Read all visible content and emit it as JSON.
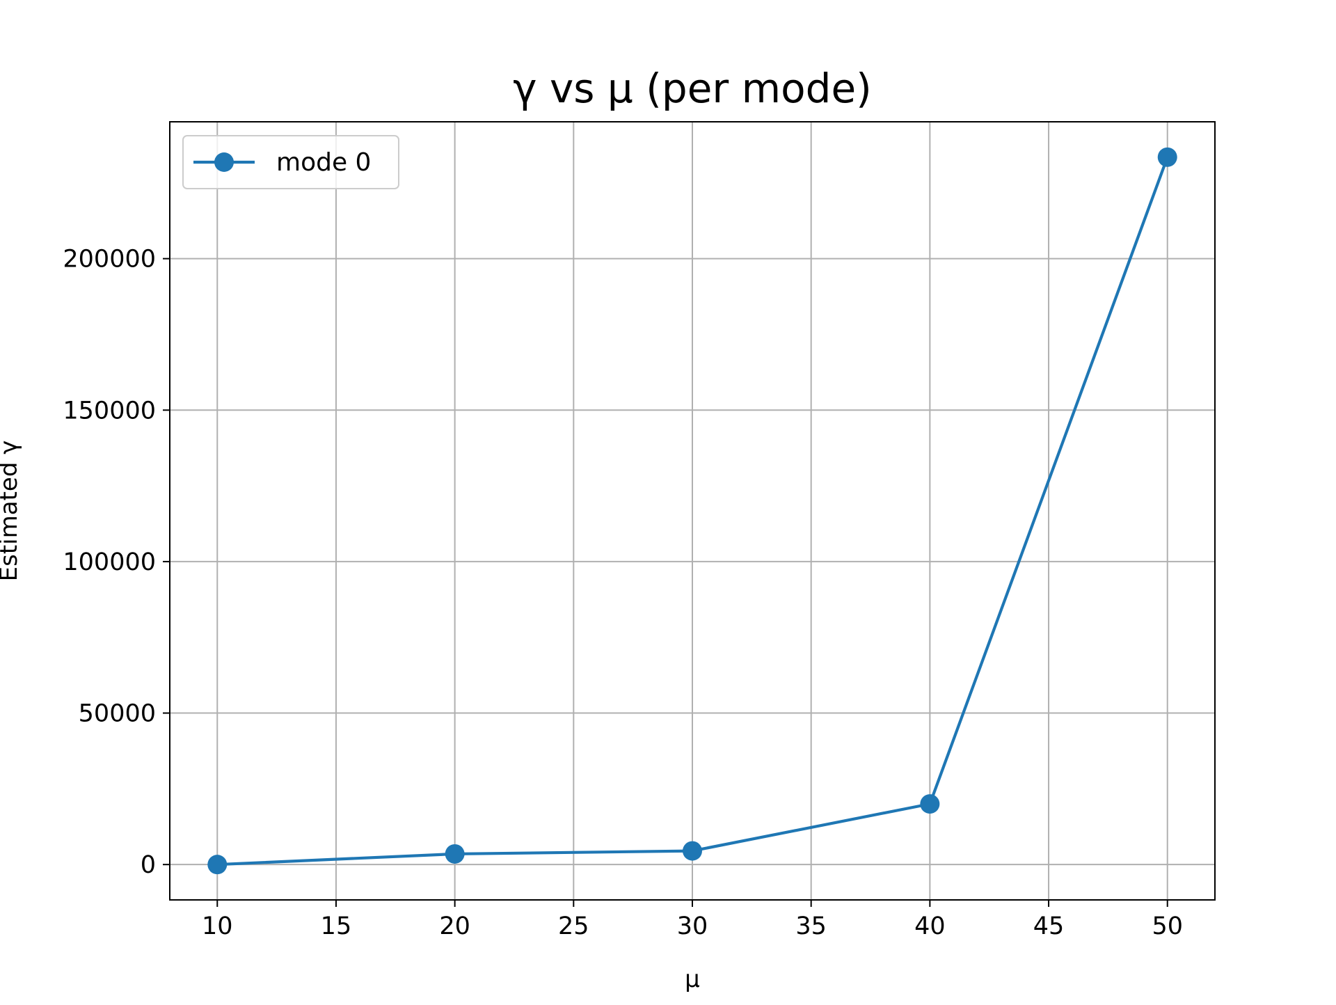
{
  "chart_data": {
    "type": "line",
    "title": "γ vs μ (per mode)",
    "xlabel": "μ",
    "ylabel": "Estimated γ",
    "x": [
      10,
      20,
      30,
      40,
      50
    ],
    "series": [
      {
        "name": "mode 0",
        "values": [
          0,
          3500,
          4500,
          20000,
          233500
        ],
        "color": "#1f77b4",
        "marker": "circle"
      }
    ],
    "xlim": [
      8,
      52
    ],
    "ylim": [
      -11675,
      245175
    ],
    "xticks": [
      10,
      15,
      20,
      25,
      30,
      35,
      40,
      45,
      50
    ],
    "yticks": [
      0,
      50000,
      100000,
      150000,
      200000
    ],
    "grid": true,
    "legend_position": "upper-left"
  }
}
